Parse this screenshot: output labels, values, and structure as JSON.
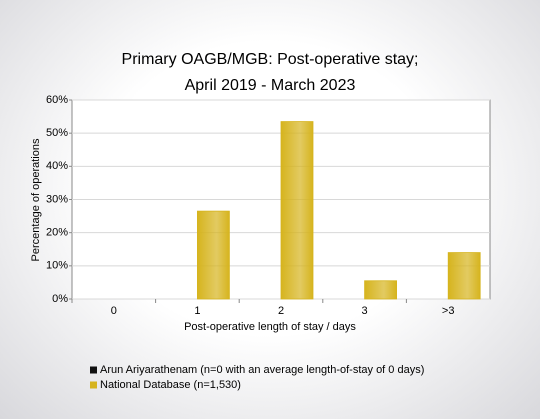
{
  "chart_data": {
    "type": "bar",
    "title": "Primary OAGB/MGB: Post-operative stay;",
    "subtitle": "April 2019 - March 2023",
    "x_label": "Post-operative length of stay / days",
    "y_label": "Percentage of operations",
    "categories": [
      "0",
      "1",
      "2",
      "3",
      ">3"
    ],
    "series": [
      {
        "name": "Arun Ariyarathenam (n=0 with an average length-of-stay of 0 days)",
        "color": "#111111",
        "values": [
          0,
          0,
          0,
          0,
          0
        ]
      },
      {
        "name": "National Database (n=1,530)",
        "color": "#d6b41e",
        "values": [
          0,
          26.5,
          53.5,
          5.5,
          14
        ]
      }
    ],
    "ylim": [
      0,
      60
    ],
    "yticks": [
      {
        "value": 0,
        "label": "0%"
      },
      {
        "value": 10,
        "label": "10%"
      },
      {
        "value": 20,
        "label": "20%"
      },
      {
        "value": 30,
        "label": "30%"
      },
      {
        "value": 40,
        "label": "40%"
      },
      {
        "value": 50,
        "label": "50%"
      },
      {
        "value": 60,
        "label": "60%"
      }
    ],
    "grid": true
  }
}
